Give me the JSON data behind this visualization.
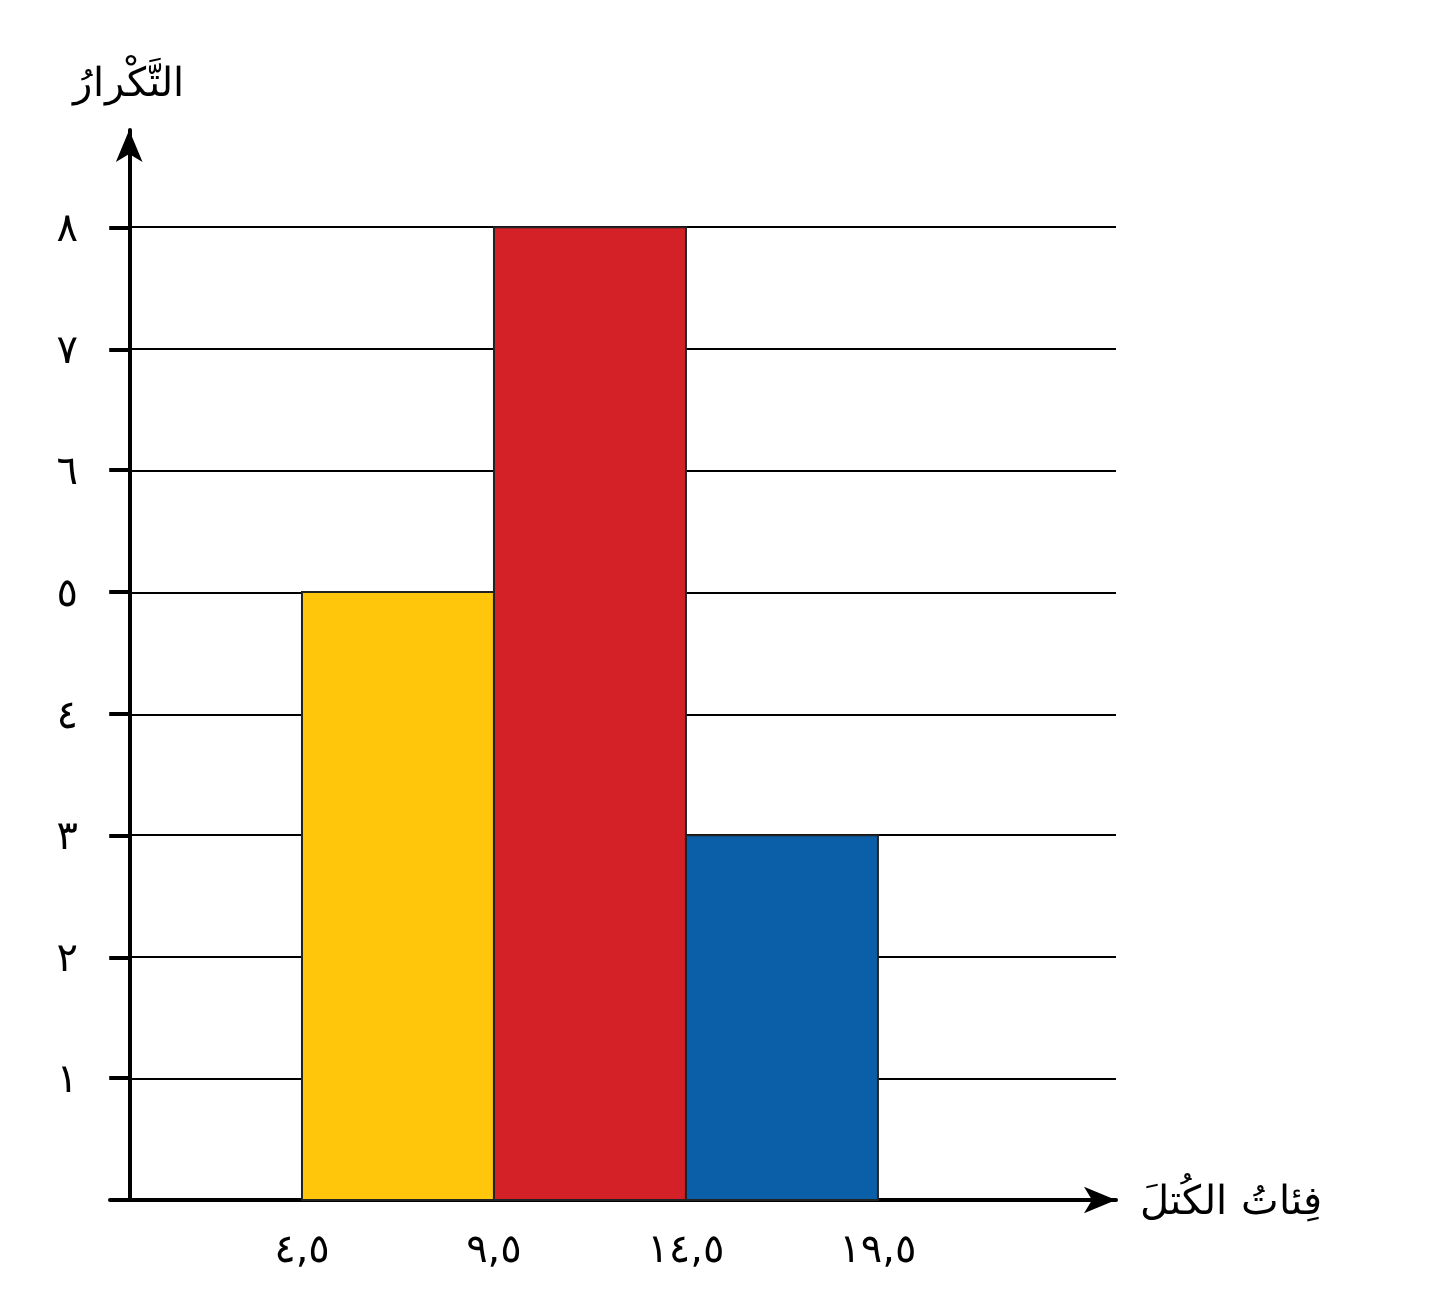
{
  "chart_data": {
    "type": "histogram",
    "xlabel": "فِئاتُ الكُتلَ",
    "ylabel": "التَّكْرارُ",
    "bins": [
      4.5,
      9.5,
      14.5,
      19.5
    ],
    "values": [
      5,
      8,
      3
    ],
    "colors": [
      "#ffc60b",
      "#d42127",
      "#0b5fa8"
    ],
    "xlim": [
      -0.5,
      25.7
    ],
    "ylim": [
      0,
      8.8
    ],
    "xticks": [
      {
        "value": 4.5,
        "label": "٤,٥"
      },
      {
        "value": 9.5,
        "label": "٩,٥"
      },
      {
        "value": 14.5,
        "label": "١٤,٥"
      },
      {
        "value": 19.5,
        "label": "١٩,٥"
      }
    ],
    "yticks": [
      {
        "value": 1,
        "label": "١"
      },
      {
        "value": 2,
        "label": "٢"
      },
      {
        "value": 3,
        "label": "٣"
      },
      {
        "value": 4,
        "label": "٤"
      },
      {
        "value": 5,
        "label": "٥"
      },
      {
        "value": 6,
        "label": "٦"
      },
      {
        "value": 7,
        "label": "٧"
      },
      {
        "value": 8,
        "label": "٨"
      }
    ],
    "grid": "y"
  }
}
